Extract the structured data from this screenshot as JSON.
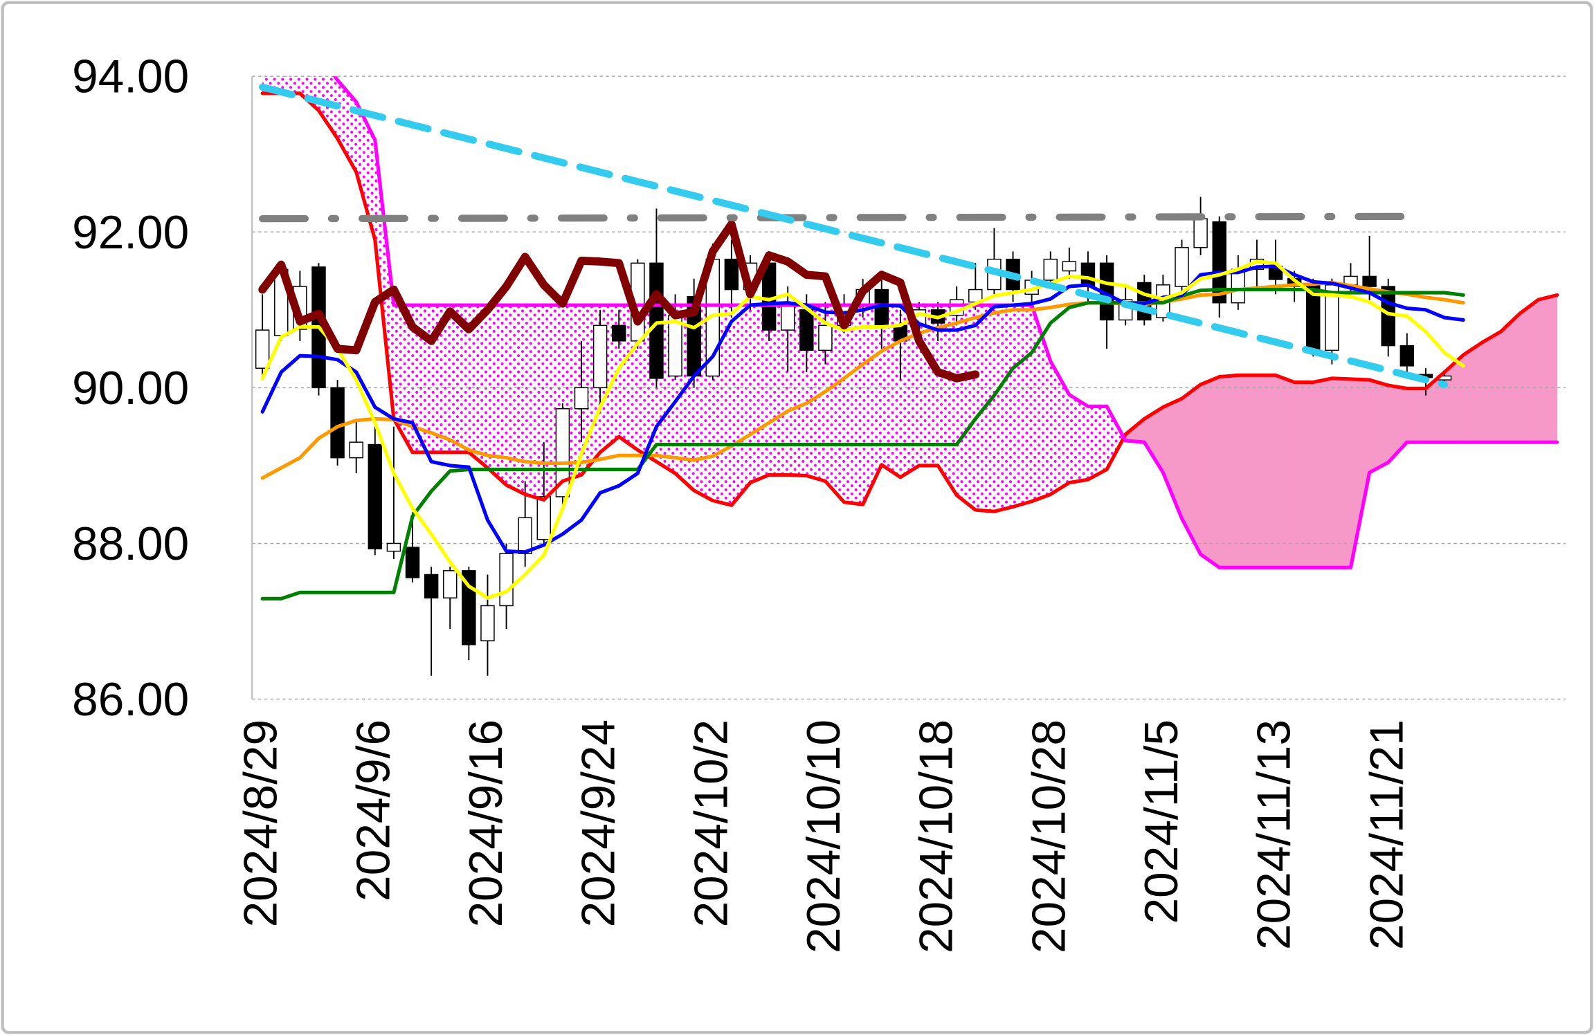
{
  "chart_data": {
    "type": "candlestick",
    "categories": [
      "2024/8/29",
      null,
      null,
      null,
      null,
      null,
      "2024/9/6",
      null,
      null,
      null,
      null,
      null,
      "2024/9/16",
      null,
      null,
      null,
      null,
      null,
      "2024/9/24",
      null,
      null,
      null,
      null,
      null,
      "2024/10/2",
      null,
      null,
      null,
      null,
      null,
      "2024/10/10",
      null,
      null,
      null,
      null,
      null,
      "2024/10/18",
      null,
      null,
      null,
      null,
      null,
      "2024/10/28",
      null,
      null,
      null,
      null,
      null,
      "2024/11/5",
      null,
      null,
      null,
      null,
      null,
      "2024/11/13",
      null,
      null,
      null,
      null,
      null,
      "2024/11/21",
      null,
      null,
      null,
      null,
      null,
      null,
      null,
      null,
      null
    ],
    "ylim": [
      86,
      94
    ],
    "yticks": [
      {
        "value": 86,
        "label": "86.00"
      },
      {
        "value": 88,
        "label": "88.00"
      },
      {
        "value": 90,
        "label": "90.00"
      },
      {
        "value": 92,
        "label": "92.00"
      },
      {
        "value": 94,
        "label": "94.00"
      }
    ],
    "grid": true,
    "up_color": "#ffffff",
    "down_color": "#000000",
    "open": [
      90.25,
      90.67,
      90.75,
      91.55,
      90.0,
      89.1,
      89.27,
      87.9,
      87.95,
      87.6,
      87.3,
      87.65,
      86.75,
      87.2,
      87.87,
      88.05,
      88.6,
      89.73,
      90.0,
      90.8,
      90.6,
      91.6,
      90.15,
      91.17,
      90.15,
      91.65,
      91.26,
      91.6,
      90.74,
      91.0,
      90.48,
      90.8,
      91.06,
      91.26,
      90.8,
      90.8,
      91.0,
      90.93,
      91.1,
      91.26,
      91.65,
      91.2,
      91.38,
      91.5,
      91.6,
      91.6,
      90.87,
      91.35,
      90.9,
      91.3,
      91.8,
      92.13,
      91.09,
      91.52,
      91.56,
      91.4,
      91.32,
      90.48,
      91.32,
      91.43,
      91.3,
      90.54,
      90.17,
      90.1,
      null,
      null,
      null,
      null,
      null,
      null
    ],
    "high": [
      91.2,
      91.6,
      91.5,
      91.6,
      90.1,
      89.6,
      89.6,
      89.5,
      88.4,
      87.7,
      87.7,
      87.7,
      87.6,
      88.0,
      88.8,
      89.3,
      89.8,
      90.6,
      91.0,
      91.0,
      91.65,
      92.3,
      91.2,
      91.4,
      91.85,
      91.9,
      91.7,
      91.75,
      91.3,
      91.2,
      91.1,
      91.2,
      91.4,
      91.4,
      91.0,
      91.1,
      91.1,
      91.3,
      91.6,
      92.05,
      91.75,
      91.5,
      91.75,
      91.8,
      91.75,
      91.7,
      91.3,
      91.45,
      91.45,
      91.9,
      92.45,
      92.2,
      91.7,
      91.9,
      91.9,
      91.5,
      91.4,
      91.4,
      91.6,
      91.95,
      91.4,
      90.7,
      90.25,
      90.2,
      null,
      null,
      null,
      null,
      null,
      null
    ],
    "low": [
      90.1,
      90.6,
      90.6,
      89.9,
      89.0,
      88.9,
      87.85,
      87.8,
      87.5,
      86.3,
      86.9,
      86.5,
      86.3,
      86.9,
      87.7,
      88.0,
      88.5,
      89.3,
      89.7,
      90.5,
      90.5,
      90.0,
      90.1,
      90.0,
      90.1,
      90.9,
      91.0,
      90.6,
      90.2,
      90.2,
      90.3,
      90.7,
      90.9,
      90.5,
      90.1,
      90.7,
      90.6,
      90.8,
      91.0,
      91.2,
      91.1,
      91.0,
      91.3,
      91.4,
      91.1,
      90.5,
      90.8,
      90.8,
      90.85,
      91.2,
      91.7,
      90.9,
      91.0,
      91.3,
      91.2,
      91.1,
      90.4,
      90.3,
      91.2,
      91.1,
      90.4,
      90.2,
      89.9,
      90.0,
      null,
      null,
      null,
      null,
      null,
      null
    ],
    "close": [
      90.74,
      91.52,
      91.3,
      90.0,
      89.1,
      89.3,
      87.93,
      88.0,
      87.56,
      87.3,
      87.65,
      86.7,
      87.2,
      87.87,
      88.33,
      88.6,
      89.73,
      90.0,
      90.8,
      90.6,
      91.6,
      90.12,
      90.93,
      90.15,
      91.65,
      91.26,
      91.6,
      90.74,
      91.06,
      90.48,
      90.8,
      91.06,
      91.26,
      90.8,
      90.6,
      91.0,
      90.83,
      91.13,
      91.26,
      91.65,
      91.26,
      91.38,
      91.65,
      91.62,
      91.3,
      90.87,
      91.13,
      90.87,
      91.32,
      91.8,
      92.17,
      91.09,
      91.52,
      91.65,
      91.39,
      91.3,
      90.48,
      91.32,
      91.43,
      91.3,
      90.54,
      90.28,
      90.13,
      90.15,
      null,
      null,
      null,
      null,
      null,
      null
    ],
    "cloud": {
      "fill_color": "#f799c8",
      "pattern_color": "#ff00ff",
      "span_a": {
        "color": "#ff0000",
        "values": [
          93.78,
          93.78,
          93.78,
          93.56,
          93.2,
          92.77,
          91.9,
          89.6,
          89.17,
          89.17,
          89.17,
          89.17,
          88.97,
          88.75,
          88.63,
          88.56,
          88.8,
          88.88,
          89.17,
          89.37,
          89.2,
          89.05,
          88.9,
          88.68,
          88.55,
          88.49,
          88.78,
          88.88,
          88.88,
          88.87,
          88.8,
          88.53,
          88.5,
          89.01,
          88.85,
          89.0,
          89.0,
          88.62,
          88.43,
          88.41,
          88.47,
          88.54,
          88.63,
          88.78,
          88.82,
          88.95,
          89.4,
          89.6,
          89.75,
          89.86,
          90.04,
          90.14,
          90.16,
          90.16,
          90.16,
          90.07,
          90.07,
          90.12,
          90.11,
          90.1,
          90.03,
          89.99,
          89.99,
          90.2,
          90.42,
          90.58,
          90.72,
          90.95,
          91.13,
          91.19
        ]
      },
      "span_b": {
        "color": "#ff00ff",
        "values": [
          94.3,
          94.3,
          94.3,
          94.3,
          93.95,
          93.67,
          93.18,
          91.06,
          91.06,
          91.06,
          91.06,
          91.06,
          91.06,
          91.06,
          91.06,
          91.06,
          91.06,
          91.06,
          91.06,
          91.06,
          91.06,
          91.06,
          91.06,
          91.06,
          91.06,
          91.06,
          91.06,
          91.06,
          91.06,
          91.06,
          91.06,
          91.06,
          91.06,
          91.06,
          91.06,
          91.06,
          91.06,
          91.06,
          91.06,
          91.06,
          91.06,
          91.06,
          90.34,
          89.91,
          89.76,
          89.76,
          89.32,
          89.3,
          88.91,
          88.32,
          87.86,
          87.69,
          87.69,
          87.69,
          87.69,
          87.69,
          87.69,
          87.69,
          87.69,
          88.91,
          89.04,
          89.3,
          89.3,
          89.3,
          89.3,
          89.3,
          89.3,
          89.3,
          89.3,
          89.3
        ]
      }
    },
    "series": [
      {
        "color": "#ff9900",
        "values": [
          88.84,
          88.97,
          89.1,
          89.35,
          89.5,
          89.58,
          89.6,
          89.59,
          89.5,
          89.42,
          89.33,
          89.2,
          89.13,
          89.1,
          89.05,
          89.03,
          89.03,
          89.04,
          89.08,
          89.13,
          89.13,
          89.13,
          89.1,
          89.07,
          89.12,
          89.25,
          89.4,
          89.55,
          89.7,
          89.8,
          89.95,
          90.12,
          90.3,
          90.47,
          90.6,
          90.7,
          90.77,
          90.83,
          90.9,
          90.96,
          91.0,
          91.0,
          91.03,
          91.07,
          91.09,
          91.09,
          91.08,
          91.07,
          91.1,
          91.14,
          91.19,
          91.2,
          91.26,
          91.28,
          91.3,
          91.32,
          91.33,
          91.35,
          91.31,
          91.27,
          91.23,
          91.2,
          91.16,
          91.13,
          91.09,
          null,
          null,
          null,
          null,
          null
        ]
      },
      {
        "color": "#008000",
        "values": [
          87.29,
          87.29,
          87.37,
          87.37,
          87.37,
          87.37,
          87.37,
          87.37,
          88.35,
          88.67,
          88.93,
          88.95,
          88.95,
          88.95,
          88.95,
          88.95,
          88.95,
          88.95,
          88.95,
          88.95,
          88.95,
          89.27,
          89.27,
          89.27,
          89.27,
          89.27,
          89.27,
          89.27,
          89.27,
          89.27,
          89.27,
          89.27,
          89.27,
          89.27,
          89.27,
          89.27,
          89.27,
          89.27,
          89.6,
          89.9,
          90.25,
          90.45,
          90.83,
          91.03,
          91.09,
          91.09,
          91.09,
          91.09,
          91.09,
          91.18,
          91.25,
          91.26,
          91.26,
          91.26,
          91.26,
          91.26,
          91.26,
          91.22,
          91.22,
          91.22,
          91.22,
          91.22,
          91.22,
          91.22,
          91.19,
          null,
          null,
          null,
          null,
          null
        ]
      },
      {
        "color": "#0000ff",
        "values": [
          89.69,
          90.2,
          90.41,
          90.4,
          90.36,
          90.2,
          89.75,
          89.6,
          89.55,
          89.05,
          89.0,
          88.98,
          88.3,
          87.9,
          87.89,
          87.98,
          88.12,
          88.3,
          88.65,
          88.74,
          88.9,
          89.5,
          89.82,
          90.15,
          90.4,
          90.85,
          91.06,
          91.08,
          91.09,
          91.06,
          90.97,
          90.96,
          91.0,
          91.06,
          91.05,
          90.82,
          90.74,
          90.74,
          90.8,
          91.04,
          91.06,
          91.08,
          91.14,
          91.3,
          91.32,
          91.2,
          91.08,
          91.08,
          91.16,
          91.19,
          91.45,
          91.48,
          91.48,
          91.55,
          91.56,
          91.45,
          91.36,
          91.34,
          91.28,
          91.22,
          91.09,
          91.02,
          91.0,
          90.9,
          90.87,
          null,
          null,
          null,
          null,
          null
        ]
      },
      {
        "color": "#ffff00",
        "values": [
          90.12,
          90.65,
          90.78,
          90.78,
          90.5,
          90.1,
          89.55,
          88.9,
          88.45,
          88.12,
          87.76,
          87.45,
          87.3,
          87.38,
          87.6,
          87.85,
          88.45,
          89.15,
          89.75,
          90.25,
          90.57,
          90.83,
          90.85,
          90.77,
          90.93,
          90.95,
          91.17,
          91.13,
          91.2,
          91.02,
          90.83,
          90.74,
          90.78,
          90.78,
          90.8,
          90.95,
          90.9,
          90.98,
          91.08,
          91.18,
          91.22,
          91.26,
          91.34,
          91.43,
          91.41,
          91.34,
          91.31,
          91.2,
          91.14,
          91.22,
          91.4,
          91.45,
          91.52,
          91.62,
          91.6,
          91.38,
          91.2,
          91.19,
          91.17,
          91.1,
          90.95,
          90.92,
          90.72,
          90.45,
          90.28,
          null,
          null,
          null,
          null,
          null
        ]
      },
      {
        "color": "#800000",
        "width": 8,
        "values": [
          91.26,
          91.58,
          90.85,
          90.95,
          90.5,
          90.48,
          91.1,
          91.26,
          90.78,
          90.6,
          90.98,
          90.75,
          91.0,
          91.3,
          91.68,
          91.32,
          91.08,
          91.63,
          91.62,
          91.6,
          90.85,
          91.2,
          90.93,
          90.97,
          91.75,
          92.1,
          91.2,
          91.7,
          91.62,
          91.45,
          91.43,
          90.8,
          91.24,
          91.45,
          91.35,
          90.6,
          90.2,
          90.12,
          90.17,
          null,
          null,
          null,
          null,
          null,
          null,
          null,
          null,
          null,
          null,
          null,
          null,
          null,
          null,
          null,
          null,
          null,
          null,
          null,
          null,
          null,
          null,
          null,
          null,
          null,
          null,
          null,
          null,
          null,
          null,
          null
        ]
      }
    ],
    "trendlines": [
      {
        "color": "#808080",
        "style": "dashdot",
        "x": [
          0,
          62
        ],
        "values": [
          92.17,
          92.2
        ]
      },
      {
        "color": "#33ccee",
        "style": "dashed",
        "x": [
          0,
          63
        ],
        "values": [
          93.86,
          90.04
        ]
      }
    ]
  }
}
